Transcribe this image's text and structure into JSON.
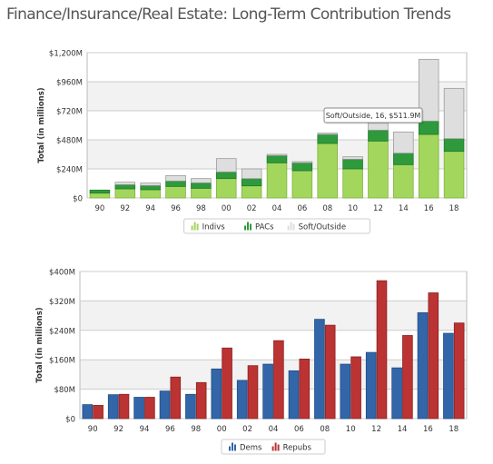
{
  "page_title": "Finance/Insurance/Real Estate: Long-Term Contribution Trends",
  "colors": {
    "indivs": "#a3d65c",
    "indivs_dark": "#7fb43c",
    "pacs": "#2e9a3c",
    "pacs_dark": "#1f7a2c",
    "soft": "#dedede",
    "soft_dark": "#9a9a9a",
    "dems": "#3366a8",
    "dems_dark": "#1f4d86",
    "repubs": "#bb3333",
    "repubs_dark": "#8e2222",
    "grid": "#cccccc",
    "band": "#f2f2f2"
  },
  "chart_data": [
    {
      "type": "bar",
      "stacked": true,
      "ylabel": "Total (in millions)",
      "ylim": [
        0,
        1200
      ],
      "yticks": [
        0,
        240,
        480,
        720,
        960,
        1200
      ],
      "ytick_labels": [
        "$0",
        "$240M",
        "$480M",
        "$720M",
        "$960M",
        "$1,200M"
      ],
      "categories": [
        "90",
        "92",
        "94",
        "96",
        "98",
        "00",
        "02",
        "04",
        "06",
        "08",
        "10",
        "12",
        "14",
        "16",
        "18"
      ],
      "series": [
        {
          "name": "Indivs",
          "key": "indivs",
          "values": [
            40,
            75,
            68,
            95,
            80,
            160,
            100,
            290,
            225,
            450,
            240,
            470,
            275,
            525,
            385
          ]
        },
        {
          "name": "PACs",
          "key": "pacs",
          "values": [
            25,
            35,
            35,
            45,
            45,
            55,
            60,
            60,
            65,
            75,
            80,
            90,
            95,
            110,
            105
          ]
        },
        {
          "name": "Soft/Outside",
          "key": "soft",
          "values": [
            0,
            20,
            20,
            45,
            35,
            110,
            80,
            10,
            10,
            10,
            20,
            60,
            175,
            510,
            415
          ]
        }
      ],
      "legend_position": "bottom",
      "tooltip": {
        "text": "Soft/Outside, 16, $511.9M"
      }
    },
    {
      "type": "bar",
      "stacked": false,
      "ylabel": "Total (in millions)",
      "ylim": [
        0,
        400
      ],
      "yticks": [
        0,
        80,
        160,
        240,
        320,
        400
      ],
      "ytick_labels": [
        "$0",
        "$80M",
        "$160M",
        "$240M",
        "$320M",
        "$400M"
      ],
      "categories": [
        "90",
        "92",
        "94",
        "96",
        "98",
        "00",
        "02",
        "04",
        "06",
        "08",
        "10",
        "12",
        "14",
        "16",
        "18"
      ],
      "series": [
        {
          "name": "Dems",
          "key": "dems",
          "values": [
            38,
            65,
            58,
            75,
            66,
            135,
            104,
            148,
            130,
            270,
            148,
            180,
            138,
            288,
            232
          ]
        },
        {
          "name": "Repubs",
          "key": "repubs",
          "values": [
            36,
            66,
            58,
            113,
            98,
            192,
            144,
            212,
            162,
            254,
            168,
            375,
            226,
            342,
            260
          ]
        }
      ],
      "legend_position": "bottom"
    }
  ]
}
